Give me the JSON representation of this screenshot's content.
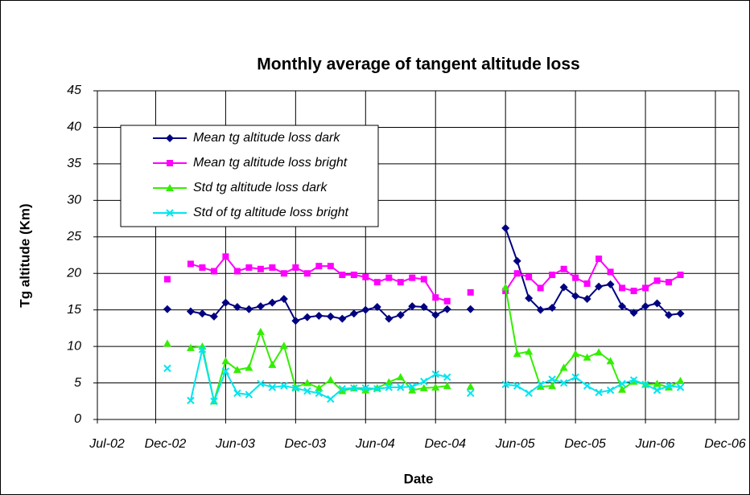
{
  "chart_data": {
    "type": "line",
    "title": "Monthly average of tangent altitude loss",
    "xlabel": "Date",
    "ylabel": "Tg altitude (Km)",
    "x": [
      "2003-01",
      "2003-02",
      "2003-03",
      "2003-04",
      "2003-05",
      "2003-06",
      "2003-07",
      "2003-08",
      "2003-09",
      "2003-10",
      "2003-11",
      "2003-12",
      "2004-01",
      "2004-02",
      "2004-03",
      "2004-04",
      "2004-05",
      "2004-06",
      "2004-07",
      "2004-08",
      "2004-09",
      "2004-10",
      "2004-11",
      "2004-12",
      "2005-01",
      "2005-02",
      "2005-03",
      "2005-04",
      "2005-05",
      "2005-06",
      "2005-07",
      "2005-08",
      "2005-09",
      "2005-10",
      "2005-11",
      "2005-12",
      "2006-01",
      "2006-02",
      "2006-03",
      "2006-04",
      "2006-05",
      "2006-06",
      "2006-07",
      "2006-08",
      "2006-09"
    ],
    "series": [
      {
        "name": "Mean tg altitude loss dark",
        "color": "#000080",
        "marker": "diamond",
        "values": [
          15.1,
          null,
          14.8,
          14.5,
          14.1,
          16.0,
          15.4,
          15.1,
          15.5,
          16.0,
          16.5,
          13.5,
          14.0,
          14.2,
          14.1,
          13.8,
          14.5,
          15.0,
          15.4,
          13.8,
          14.3,
          15.5,
          15.4,
          14.3,
          15.1,
          null,
          15.1,
          null,
          null,
          26.2,
          21.7,
          16.6,
          15.0,
          15.3,
          18.1,
          16.9,
          16.5,
          18.2,
          18.5,
          15.5,
          14.6,
          15.5,
          15.9,
          14.3,
          14.5
        ]
      },
      {
        "name": "Mean tg altitude loss bright",
        "color": "#ff00ff",
        "marker": "square",
        "values": [
          19.2,
          null,
          21.3,
          20.8,
          20.3,
          22.3,
          20.3,
          20.8,
          20.6,
          20.8,
          20.0,
          20.8,
          20.0,
          21.0,
          21.0,
          19.8,
          19.8,
          19.5,
          18.8,
          19.4,
          18.8,
          19.4,
          19.2,
          16.7,
          16.2,
          null,
          17.4,
          null,
          null,
          17.6,
          20.0,
          19.5,
          18.0,
          19.8,
          20.6,
          19.4,
          18.6,
          22.0,
          20.2,
          18.0,
          17.6,
          18.0,
          19.0,
          18.8,
          19.8
        ]
      },
      {
        "name": "Std tg altitude loss dark",
        "color": "#33ee00",
        "marker": "triangle",
        "values": [
          10.4,
          null,
          9.8,
          10.0,
          2.5,
          8.0,
          6.8,
          7.1,
          12.0,
          7.5,
          10.1,
          4.4,
          5.0,
          4.3,
          5.4,
          3.9,
          4.3,
          4.0,
          4.3,
          5.1,
          5.8,
          4.0,
          4.3,
          4.4,
          4.6,
          null,
          4.5,
          null,
          null,
          18.1,
          9.0,
          9.3,
          4.5,
          4.6,
          7.1,
          9.0,
          8.5,
          9.2,
          8.0,
          4.1,
          5.2,
          4.8,
          4.9,
          4.4,
          5.3
        ]
      },
      {
        "name": "Std of tg altitude loss bright",
        "color": "#00e5ee",
        "marker": "x",
        "values": [
          7.0,
          null,
          2.6,
          9.6,
          2.5,
          6.6,
          3.6,
          3.4,
          4.9,
          4.4,
          4.6,
          4.3,
          3.9,
          3.6,
          2.8,
          4.2,
          4.3,
          4.3,
          4.2,
          4.4,
          4.4,
          4.5,
          5.2,
          6.2,
          5.8,
          null,
          3.6,
          null,
          null,
          4.8,
          4.6,
          3.6,
          4.8,
          5.5,
          5.0,
          5.8,
          4.6,
          3.7,
          4.0,
          4.9,
          5.4,
          4.8,
          4.0,
          4.6,
          4.4
        ]
      }
    ],
    "xlim": [
      "2002-07",
      "2007-02"
    ],
    "xticks": [
      {
        "value": "2002-07",
        "label": "Jul-02"
      },
      {
        "value": "2002-12",
        "label": "Dec-02"
      },
      {
        "value": "2003-06",
        "label": "Jun-03"
      },
      {
        "value": "2003-12",
        "label": "Dec-03"
      },
      {
        "value": "2004-06",
        "label": "Jun-04"
      },
      {
        "value": "2004-12",
        "label": "Dec-04"
      },
      {
        "value": "2005-06",
        "label": "Jun-05"
      },
      {
        "value": "2005-12",
        "label": "Dec-05"
      },
      {
        "value": "2006-06",
        "label": "Jun-06"
      },
      {
        "value": "2006-12",
        "label": "Dec-06"
      }
    ],
    "ylim": [
      0,
      45
    ],
    "yticks": [
      0,
      5,
      10,
      15,
      20,
      25,
      30,
      35,
      40,
      45
    ],
    "grid": true,
    "legend": "upper left"
  }
}
